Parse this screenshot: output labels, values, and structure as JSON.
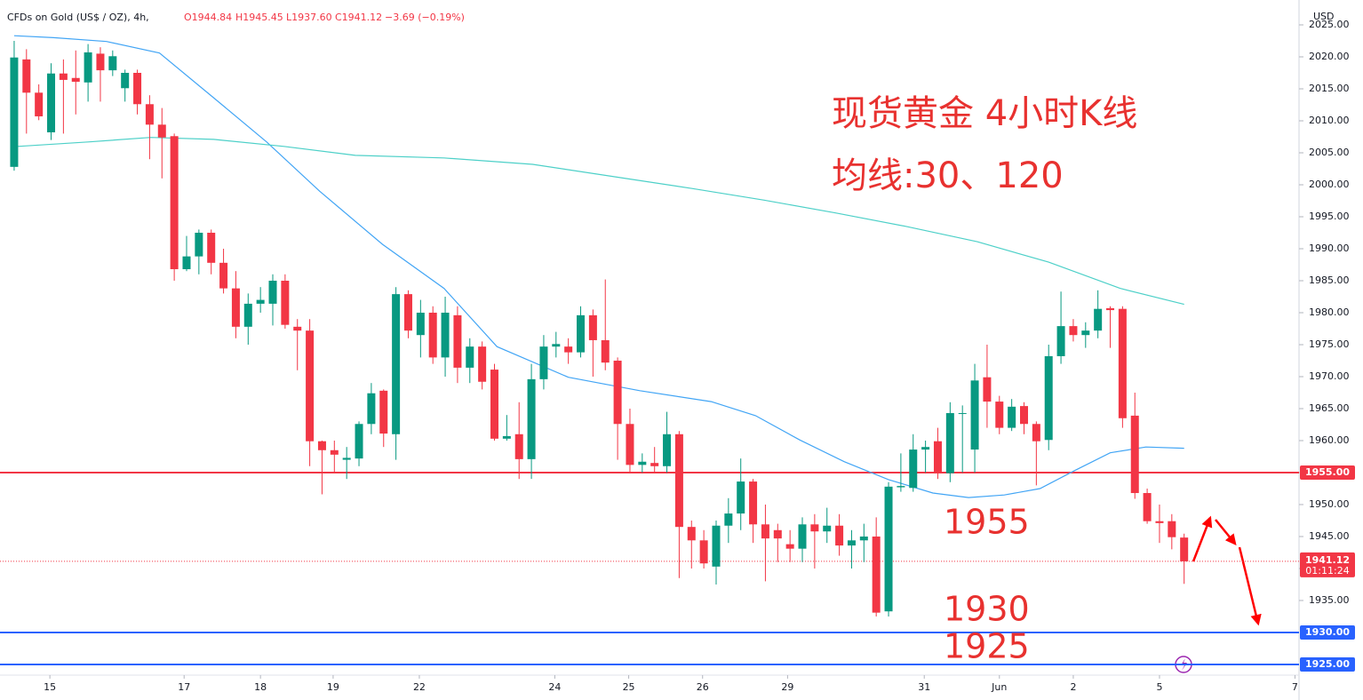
{
  "header": {
    "symbol": "CFDs on Gold (US$ / OZ), 4h,",
    "open": "O1944.84",
    "high": "H1945.45",
    "low": "L1937.60",
    "close": "C1941.12",
    "change": "−3.69 (−0.19%)"
  },
  "currency": "USD",
  "chart_data": {
    "type": "candlestick",
    "up_color": "#089981",
    "down_color": "#f23645",
    "x": [
      0,
      1,
      2,
      3,
      4,
      5,
      6,
      7,
      8,
      9,
      10,
      11,
      12,
      13,
      14,
      15,
      16,
      17,
      18,
      19,
      20,
      21,
      22,
      23,
      24,
      25,
      26,
      27,
      28,
      29,
      30,
      31,
      32,
      33,
      34,
      35,
      36,
      37,
      38,
      39,
      40,
      41,
      42,
      43,
      44,
      45,
      46,
      47,
      48,
      49,
      50,
      51,
      52,
      53,
      54,
      55,
      56,
      57,
      58,
      59,
      60,
      61,
      62,
      63,
      64,
      65,
      66,
      67,
      68,
      69,
      70,
      71,
      72,
      73,
      74,
      75,
      76,
      77,
      78,
      79,
      80,
      81,
      82,
      83,
      84,
      85,
      86,
      87,
      88,
      89,
      90,
      91,
      92,
      93,
      94,
      95
    ],
    "open": [
      2002.8,
      2019.6,
      2014.4,
      2008.2,
      2017.4,
      2016.7,
      2016,
      2020.5,
      2017.9,
      2015.1,
      2017.5,
      2012.6,
      2009.4,
      2007.6,
      1986.8,
      1988.8,
      1992.5,
      1987.8,
      1983.8,
      1977.8,
      1981.4,
      1981.4,
      1985,
      1977.8,
      1977.2,
      1959.9,
      1958.5,
      1957,
      1957.2,
      1962.6,
      1967.8,
      1961,
      1982.9,
      1976.5,
      1980,
      1973,
      1979.6,
      1971.4,
      1974.7,
      1971.1,
      1960.3,
      1961,
      1957.1,
      1969.6,
      1974.7,
      1974.7,
      1973.8,
      1979.6,
      1975.7,
      1972.5,
      1962.6,
      1956.2,
      1956.5,
      1956,
      1961,
      1946.5,
      1944.4,
      1940.3,
      1946.7,
      1948.6,
      1953.6,
      1946.9,
      1946,
      1943.8,
      1943.1,
      1946.9,
      1945.8,
      1946.7,
      1943.6,
      1944.4,
      1945,
      1933.3,
      1952.7,
      1952.6,
      1958.6,
      1959.9,
      1954.9,
      1964.2,
      1958.6,
      1969.9,
      1966.1,
      1962,
      1965.4,
      1962.6,
      1960.1,
      1973.2,
      1977.9,
      1976.5,
      1977.2,
      1980.7,
      1980.6,
      1963.9,
      1951.8,
      1947.4,
      1947.4,
      1944.84
    ],
    "high": [
      2022.5,
      2021.2,
      2015.7,
      2019,
      2019.6,
      2021,
      2022,
      2021.5,
      2021,
      2018,
      2018,
      2014,
      2012,
      2008,
      1992,
      1993,
      1993,
      1990,
      1986.5,
      1983,
      1984,
      1986,
      1986,
      1979,
      1979,
      1960,
      1960,
      1959,
      1963,
      1969,
      1968,
      1984,
      1983.5,
      1982,
      1981,
      1982.5,
      1981,
      1976,
      1975.5,
      1972,
      1964,
      1966,
      1972,
      1976.5,
      1977,
      1976,
      1981,
      1980.5,
      1985.2,
      1973,
      1965,
      1958,
      1959,
      1964.5,
      1961.5,
      1947.5,
      1946,
      1947.5,
      1951,
      1957.2,
      1954,
      1950,
      1947,
      1946,
      1948,
      1948.5,
      1949.5,
      1948.5,
      1946,
      1947,
      1948,
      1953.5,
      1958,
      1961,
      1960,
      1962,
      1966,
      1965.5,
      1972,
      1975,
      1967,
      1966.5,
      1966,
      1963,
      1975,
      1983.3,
      1979,
      1978.5,
      1983.5,
      1981,
      1981,
      1967.5,
      1952.5,
      1950,
      1948.5,
      1945.45
    ],
    "low": [
      2002.2,
      2008,
      2010.1,
      2007,
      2008,
      2011,
      2013,
      2013,
      2017,
      2013,
      2011,
      2004,
      2001,
      1985,
      1986.5,
      1986,
      1986,
      1983,
      1976,
      1975,
      1980,
      1978,
      1977.5,
      1971,
      1956,
      1951.6,
      1955,
      1954,
      1956,
      1961,
      1959,
      1957,
      1976,
      1973,
      1972,
      1970,
      1969,
      1969,
      1968,
      1960,
      1960,
      1954,
      1954,
      1968,
      1973,
      1972,
      1973,
      1970,
      1971,
      1957,
      1955,
      1955,
      1955,
      1955,
      1938.5,
      1940,
      1940,
      1937.5,
      1944,
      1946,
      1944,
      1938,
      1941,
      1941,
      1941,
      1940,
      1944,
      1942,
      1940,
      1941,
      1932.5,
      1932.5,
      1952,
      1952,
      1955,
      1954,
      1953.5,
      1955,
      1955,
      1962,
      1961,
      1961.5,
      1961,
      1953,
      1958.5,
      1972,
      1975.5,
      1974.5,
      1976,
      1974.5,
      1962,
      1950.9,
      1947,
      1944,
      1943,
      1937.6
    ],
    "close": [
      2019.9,
      2014.4,
      2010.7,
      2017.4,
      2016.4,
      2016.1,
      2020.7,
      2017.9,
      2020.1,
      2017.5,
      2012.6,
      2009.4,
      2007.4,
      1986.8,
      1988.8,
      1992.5,
      1987.8,
      1983.8,
      1977.8,
      1981.4,
      1982,
      1985,
      1978.1,
      1977.2,
      1959.9,
      1958.5,
      1957.8,
      1957.3,
      1962.6,
      1967.4,
      1961.1,
      1982.9,
      1977.2,
      1980,
      1973,
      1980,
      1971.4,
      1974.7,
      1969.2,
      1960.3,
      1960.7,
      1957.1,
      1969.6,
      1974.7,
      1975.1,
      1973.8,
      1979.6,
      1975.7,
      1972.2,
      1962.6,
      1956.2,
      1956.7,
      1956,
      1961,
      1946.5,
      1944.4,
      1940.8,
      1946.7,
      1948.6,
      1953.6,
      1946.9,
      1944.7,
      1944.7,
      1943.1,
      1946.9,
      1945.8,
      1946.7,
      1943.6,
      1944.4,
      1945,
      1933.1,
      1952.8,
      1952.9,
      1958.6,
      1959,
      1954.9,
      1964.3,
      1964.3,
      1969.4,
      1966.1,
      1962,
      1965.3,
      1962.6,
      1959.9,
      1973.2,
      1977.9,
      1976.5,
      1977.2,
      1980.6,
      1980.4,
      1963.5,
      1951.8,
      1947.4,
      1947.1,
      1944.9,
      1941.12
    ],
    "series": [
      {
        "color": "#42a5f5",
        "x": [
          0,
          3.2,
          7.5,
          11.8,
          16.2,
          20.5,
          24.8,
          29.9,
          34.9,
          39.2,
          45,
          50.8,
          56.6,
          60.2,
          63.8,
          67.4,
          71,
          74.6,
          77.5,
          80.4,
          83.3,
          86.1,
          89,
          91.9,
          95
        ],
        "values": [
          2023.3,
          2023,
          2022.4,
          2020.6,
          2013.6,
          2006.7,
          1999,
          1990.7,
          1983.8,
          1974.7,
          1969.9,
          1967.8,
          1966.1,
          1963.9,
          1960.1,
          1956.7,
          1953.9,
          1951.8,
          1951.1,
          1951.5,
          1952.5,
          1955.3,
          1958.1,
          1959,
          1958.8
        ]
      },
      {
        "color": "#4dd0c8",
        "x": [
          0.3,
          6,
          11.1,
          16.2,
          21.9,
          27.7,
          34.9,
          42.1,
          49.3,
          55.1,
          60.9,
          66.7,
          72.4,
          78.2,
          84,
          89.8,
          95
        ],
        "values": [
          2006,
          2006.7,
          2007.4,
          2007.1,
          2006,
          2004.6,
          2004.2,
          2003.2,
          2001.1,
          1999.4,
          1997.6,
          1995.6,
          1993.5,
          1991.1,
          1987.9,
          1983.8,
          1981.3
        ]
      }
    ],
    "hlines": [
      {
        "value": 1955,
        "color": "#f23645",
        "label": "1955.00"
      },
      {
        "value": 1930,
        "color": "#2962ff",
        "label": "1930.00"
      },
      {
        "value": 1925,
        "color": "#2962ff",
        "label": "1925.00"
      }
    ],
    "last_price": {
      "value": 1941.12,
      "label": "1941.12",
      "countdown": "01:11:24",
      "color": "#f23645"
    },
    "annotations": [
      "现货黄金 4小时K线",
      "均线:30、120",
      "1955",
      "1930",
      "1925"
    ],
    "xlim": [
      -1.15,
      104.33
    ],
    "xticks": [
      {
        "value": 2.9,
        "label": "15"
      },
      {
        "value": 13.8,
        "label": "17"
      },
      {
        "value": 20,
        "label": "18"
      },
      {
        "value": 25.9,
        "label": "19"
      },
      {
        "value": 32.9,
        "label": "22"
      },
      {
        "value": 43.9,
        "label": "24"
      },
      {
        "value": 49.9,
        "label": "25"
      },
      {
        "value": 55.9,
        "label": "26"
      },
      {
        "value": 62.8,
        "label": "29"
      },
      {
        "value": 73.9,
        "label": "31"
      },
      {
        "value": 80,
        "label": "Jun"
      },
      {
        "value": 86,
        "label": "2"
      },
      {
        "value": 93,
        "label": "5"
      },
      {
        "value": 104,
        "label": "7"
      }
    ],
    "ylim": [
      1923.33,
      2028.89
    ],
    "yticks": [
      {
        "value": 1935,
        "label": "1935.00"
      },
      {
        "value": 1940,
        "label": "1940.00"
      },
      {
        "value": 1945,
        "label": "1945.00"
      },
      {
        "value": 1950,
        "label": "1950.00"
      },
      {
        "value": 1955,
        "label": "1955.00"
      },
      {
        "value": 1960,
        "label": "1960.00"
      },
      {
        "value": 1965,
        "label": "1965.00"
      },
      {
        "value": 1970,
        "label": "1970.00"
      },
      {
        "value": 1975,
        "label": "1975.00"
      },
      {
        "value": 1980,
        "label": "1980.00"
      },
      {
        "value": 1985,
        "label": "1985.00"
      },
      {
        "value": 1990,
        "label": "1990.00"
      },
      {
        "value": 1995,
        "label": "1995.00"
      },
      {
        "value": 2000,
        "label": "2000.00"
      },
      {
        "value": 2005,
        "label": "2005.00"
      },
      {
        "value": 2010,
        "label": "2010.00"
      },
      {
        "value": 2015,
        "label": "2015.00"
      },
      {
        "value": 2020,
        "label": "2020.00"
      },
      {
        "value": 2025,
        "label": "2025.00"
      }
    ]
  }
}
